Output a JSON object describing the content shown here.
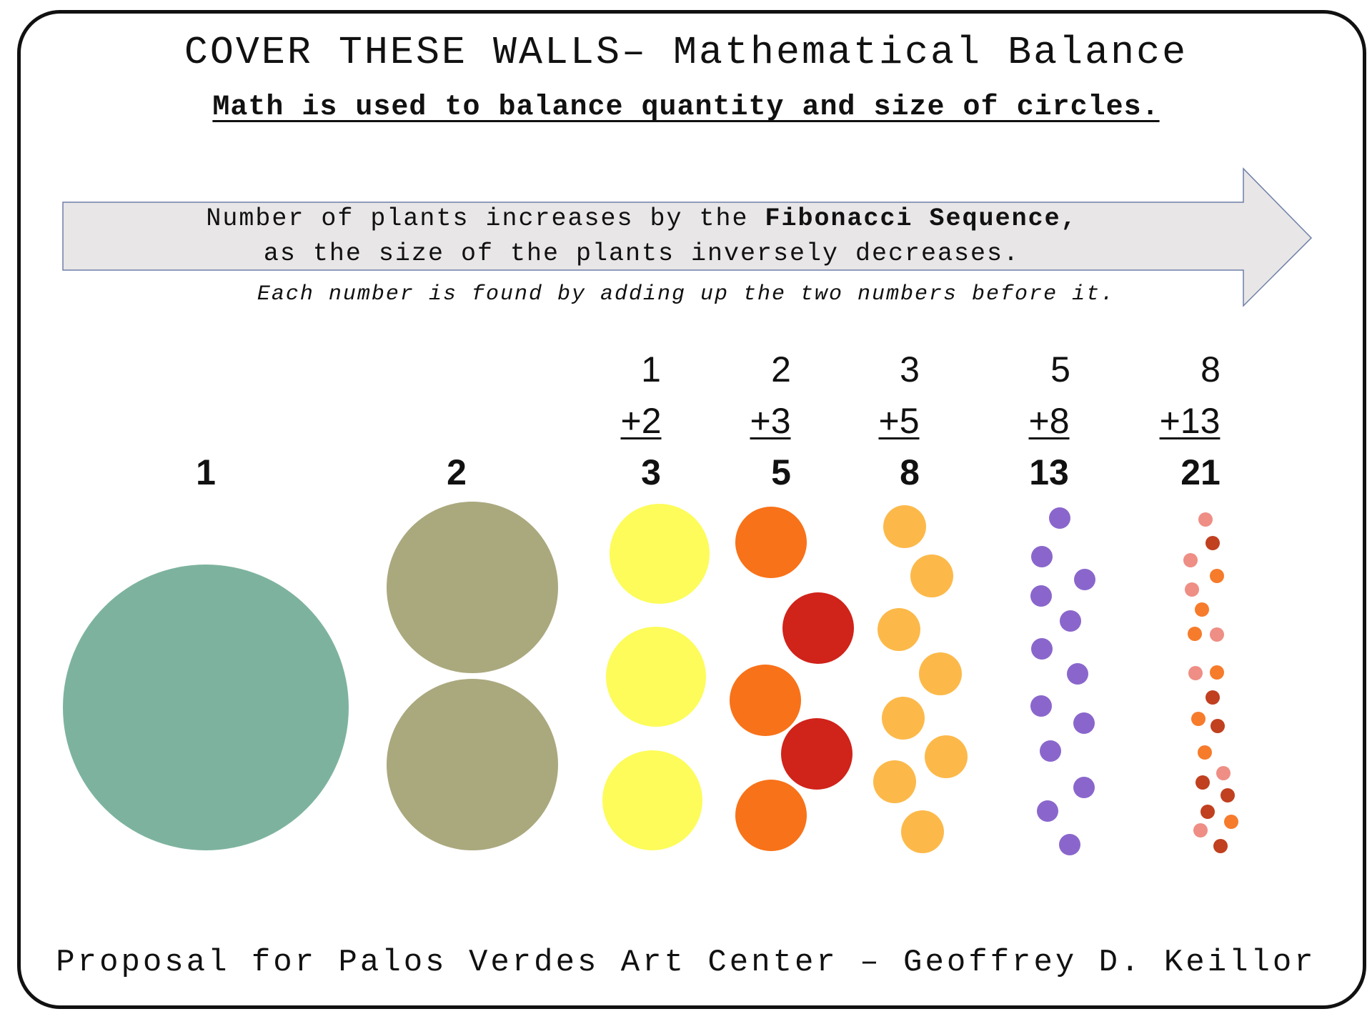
{
  "title": "COVER THESE WALLS– Mathematical Balance",
  "subtitle": "Math is used to balance quantity and size of circles.",
  "arrow": {
    "line1_pre": "Number of plants increases by the ",
    "line1_bold": "Fibonacci Sequence",
    "line1_post": ",",
    "line2": "as the size of the plants inversely decreases."
  },
  "note": "Each number is found by adding up the two numbers before it.",
  "footer": "Proposal for Palos Verdes Art Center – Geoffrey D. Keillor",
  "columns": [
    {
      "sum": "1",
      "prev": "",
      "add": "",
      "count": 1,
      "colors": [
        "#7db39e"
      ]
    },
    {
      "sum": "2",
      "prev": "",
      "add": "",
      "count": 2,
      "colors": [
        "#aaa97e"
      ]
    },
    {
      "sum": "3",
      "prev": "1",
      "add": "+2",
      "count": 3,
      "colors": [
        "#fdfc5a"
      ]
    },
    {
      "sum": "5",
      "prev": "2",
      "add": "+3",
      "count": 5,
      "colors": [
        "#f87219",
        "#d0231a"
      ]
    },
    {
      "sum": "8",
      "prev": "3",
      "add": "+5",
      "count": 8,
      "colors": [
        "#fcb94a"
      ]
    },
    {
      "sum": "13",
      "prev": "5",
      "add": "+8",
      "count": 13,
      "colors": [
        "#8a66cc"
      ]
    },
    {
      "sum": "21",
      "prev": "8",
      "add": "+13",
      "count": 21,
      "colors": [
        "#ee8e85",
        "#c0401f",
        "#f67b2b"
      ]
    }
  ]
}
